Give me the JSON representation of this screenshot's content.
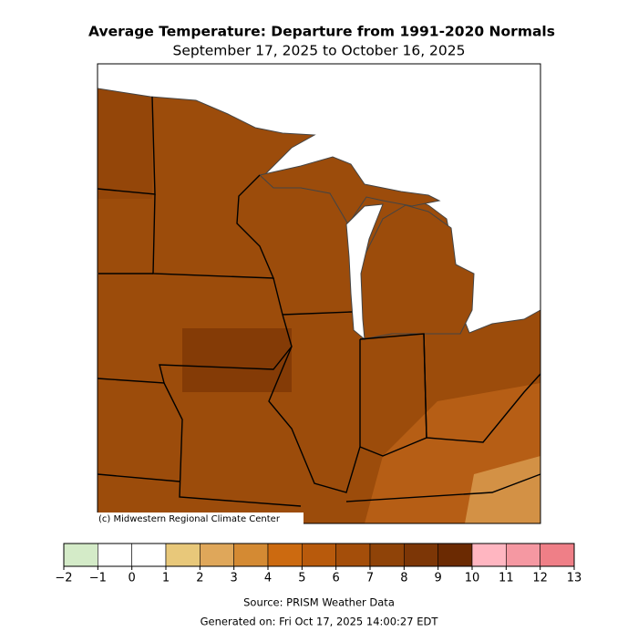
{
  "header": {
    "title": "Average Temperature: Departure from 1991-2020 Normals",
    "subtitle": "September 17, 2025 to October 16, 2025"
  },
  "map": {
    "credit": "(c) Midwestern Regional Climate Center"
  },
  "legend": {
    "ticks": [
      {
        "value": -2,
        "label": "−2"
      },
      {
        "value": -1,
        "label": "−1"
      },
      0,
      1,
      2,
      3,
      4,
      5,
      6,
      7,
      8,
      9,
      10,
      11,
      12,
      13
    ],
    "colors": [
      "#d4ebc8",
      "#ffffff",
      "#ffffff",
      "#e8c87a",
      "#dfa75a",
      "#d48a33",
      "#cc6a10",
      "#b85a0c",
      "#a44e0a",
      "#8f4308",
      "#7c3606",
      "#6b2a02",
      "#ffb6c1",
      "#f598a2",
      "#ef7f87"
    ]
  },
  "footer": {
    "source": "Source: PRISM Weather Data",
    "generated": "Generated on: Fri Oct 17, 2025 14:00:27 EDT"
  }
}
